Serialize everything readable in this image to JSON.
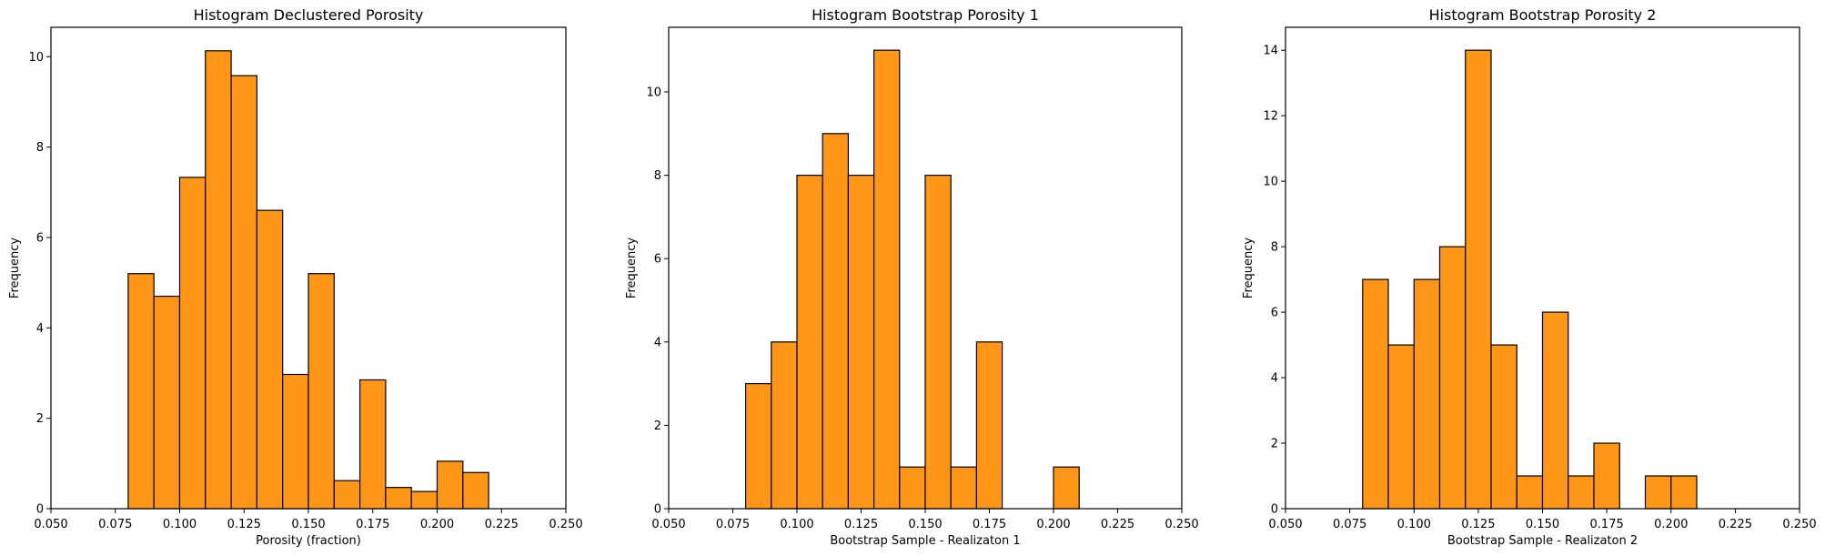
{
  "chart_data": [
    {
      "type": "bar",
      "title": "Histogram Declustered Porosity",
      "xlabel": "Porosity (fraction)",
      "ylabel": "Frequency",
      "xlim": [
        0.05,
        0.25
      ],
      "ylim": [
        0,
        10.65
      ],
      "bin_width": 0.01,
      "bin_starts": [
        0.08,
        0.09,
        0.1,
        0.11,
        0.12,
        0.13,
        0.14,
        0.15,
        0.16,
        0.17,
        0.18,
        0.19,
        0.2,
        0.21
      ],
      "values": [
        5.2,
        4.7,
        7.33,
        10.13,
        9.58,
        6.6,
        2.97,
        5.2,
        0.62,
        2.85,
        0.47,
        0.38,
        1.05,
        0.8
      ],
      "xticks": [
        "0.050",
        "0.075",
        "0.100",
        "0.125",
        "0.150",
        "0.175",
        "0.200",
        "0.225",
        "0.250"
      ],
      "yticks": [
        "0",
        "2",
        "4",
        "6",
        "8",
        "10"
      ],
      "grid": false,
      "bar_color": "#ff9618",
      "edge_color": "#000000"
    },
    {
      "type": "bar",
      "title": "Histogram Bootstrap Porosity 1",
      "xlabel": "Bootstrap Sample - Realizaton 1",
      "ylabel": "Frequency",
      "xlim": [
        0.05,
        0.25
      ],
      "ylim": [
        0,
        11.55
      ],
      "bin_width": 0.01,
      "bin_starts": [
        0.08,
        0.09,
        0.1,
        0.11,
        0.12,
        0.13,
        0.14,
        0.15,
        0.16,
        0.17,
        0.18,
        0.19,
        0.2,
        0.21
      ],
      "values": [
        3,
        4,
        8,
        9,
        8,
        11,
        1,
        8,
        1,
        4,
        0,
        0,
        1,
        0
      ],
      "xticks": [
        "0.050",
        "0.075",
        "0.100",
        "0.125",
        "0.150",
        "0.175",
        "0.200",
        "0.225",
        "0.250"
      ],
      "yticks": [
        "0",
        "2",
        "4",
        "6",
        "8",
        "10"
      ],
      "grid": false,
      "bar_color": "#ff9618",
      "edge_color": "#000000"
    },
    {
      "type": "bar",
      "title": "Histogram Bootstrap Porosity 2",
      "xlabel": "Bootstrap Sample - Realizaton 2",
      "ylabel": "Frequency",
      "xlim": [
        0.05,
        0.25
      ],
      "ylim": [
        0,
        14.7
      ],
      "bin_width": 0.01,
      "bin_starts": [
        0.08,
        0.09,
        0.1,
        0.11,
        0.12,
        0.13,
        0.14,
        0.15,
        0.16,
        0.17,
        0.18,
        0.19,
        0.2,
        0.21
      ],
      "values": [
        7,
        5,
        7,
        8,
        14,
        5,
        1,
        6,
        1,
        2,
        0,
        1,
        1,
        0
      ],
      "xticks": [
        "0.050",
        "0.075",
        "0.100",
        "0.125",
        "0.150",
        "0.175",
        "0.200",
        "0.225",
        "0.250"
      ],
      "yticks": [
        "0",
        "2",
        "4",
        "6",
        "8",
        "10",
        "12",
        "14"
      ],
      "grid": false,
      "bar_color": "#ff9618",
      "edge_color": "#000000"
    }
  ]
}
